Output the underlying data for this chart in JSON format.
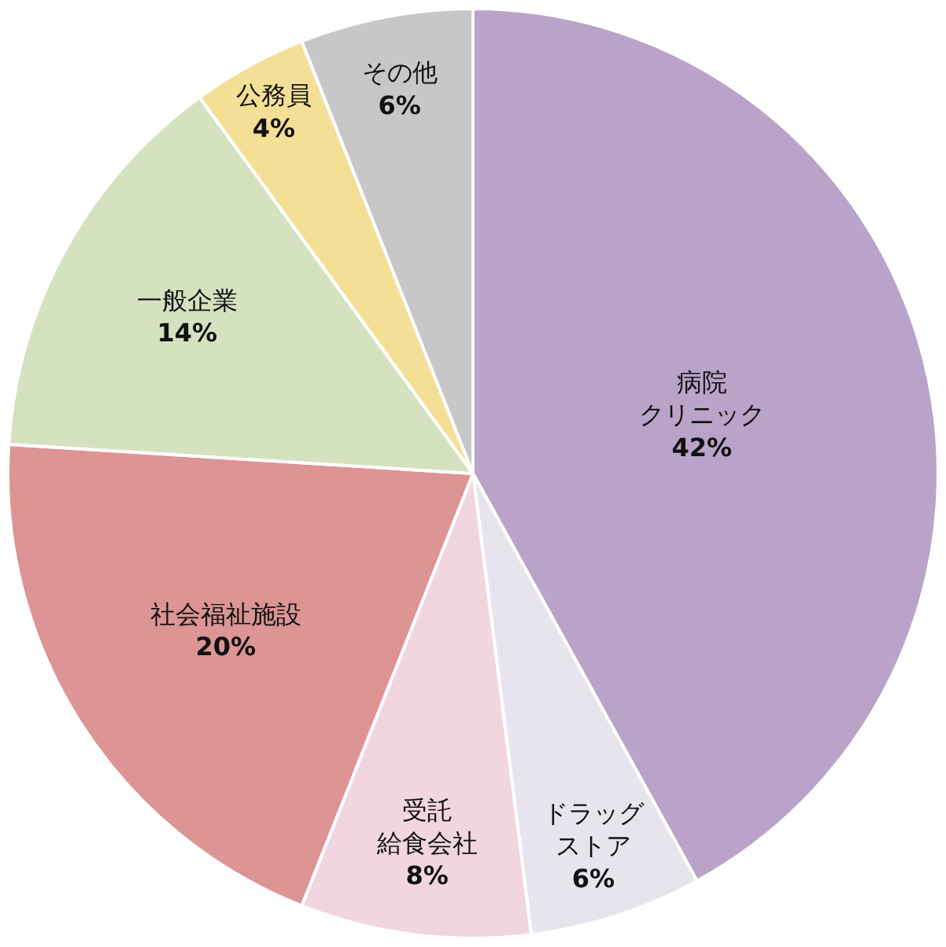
{
  "chart_data": {
    "type": "pie",
    "categories": [
      "病院クリニック",
      "ドラッグストア",
      "受託給食会社",
      "社会福祉施設",
      "一般企業",
      "公務員",
      "その他"
    ],
    "values": [
      42,
      6,
      8,
      20,
      14,
      4,
      6
    ],
    "value_labels": [
      "42%",
      "6%",
      "8%",
      "20%",
      "14%",
      "4%",
      "6%"
    ],
    "colors": [
      "#b9a3c9",
      "#e8e4ee",
      "#f1d5df",
      "#dc9494",
      "#d5e2c0",
      "#f4df96",
      "#c7c7c7"
    ],
    "legend": false
  }
}
